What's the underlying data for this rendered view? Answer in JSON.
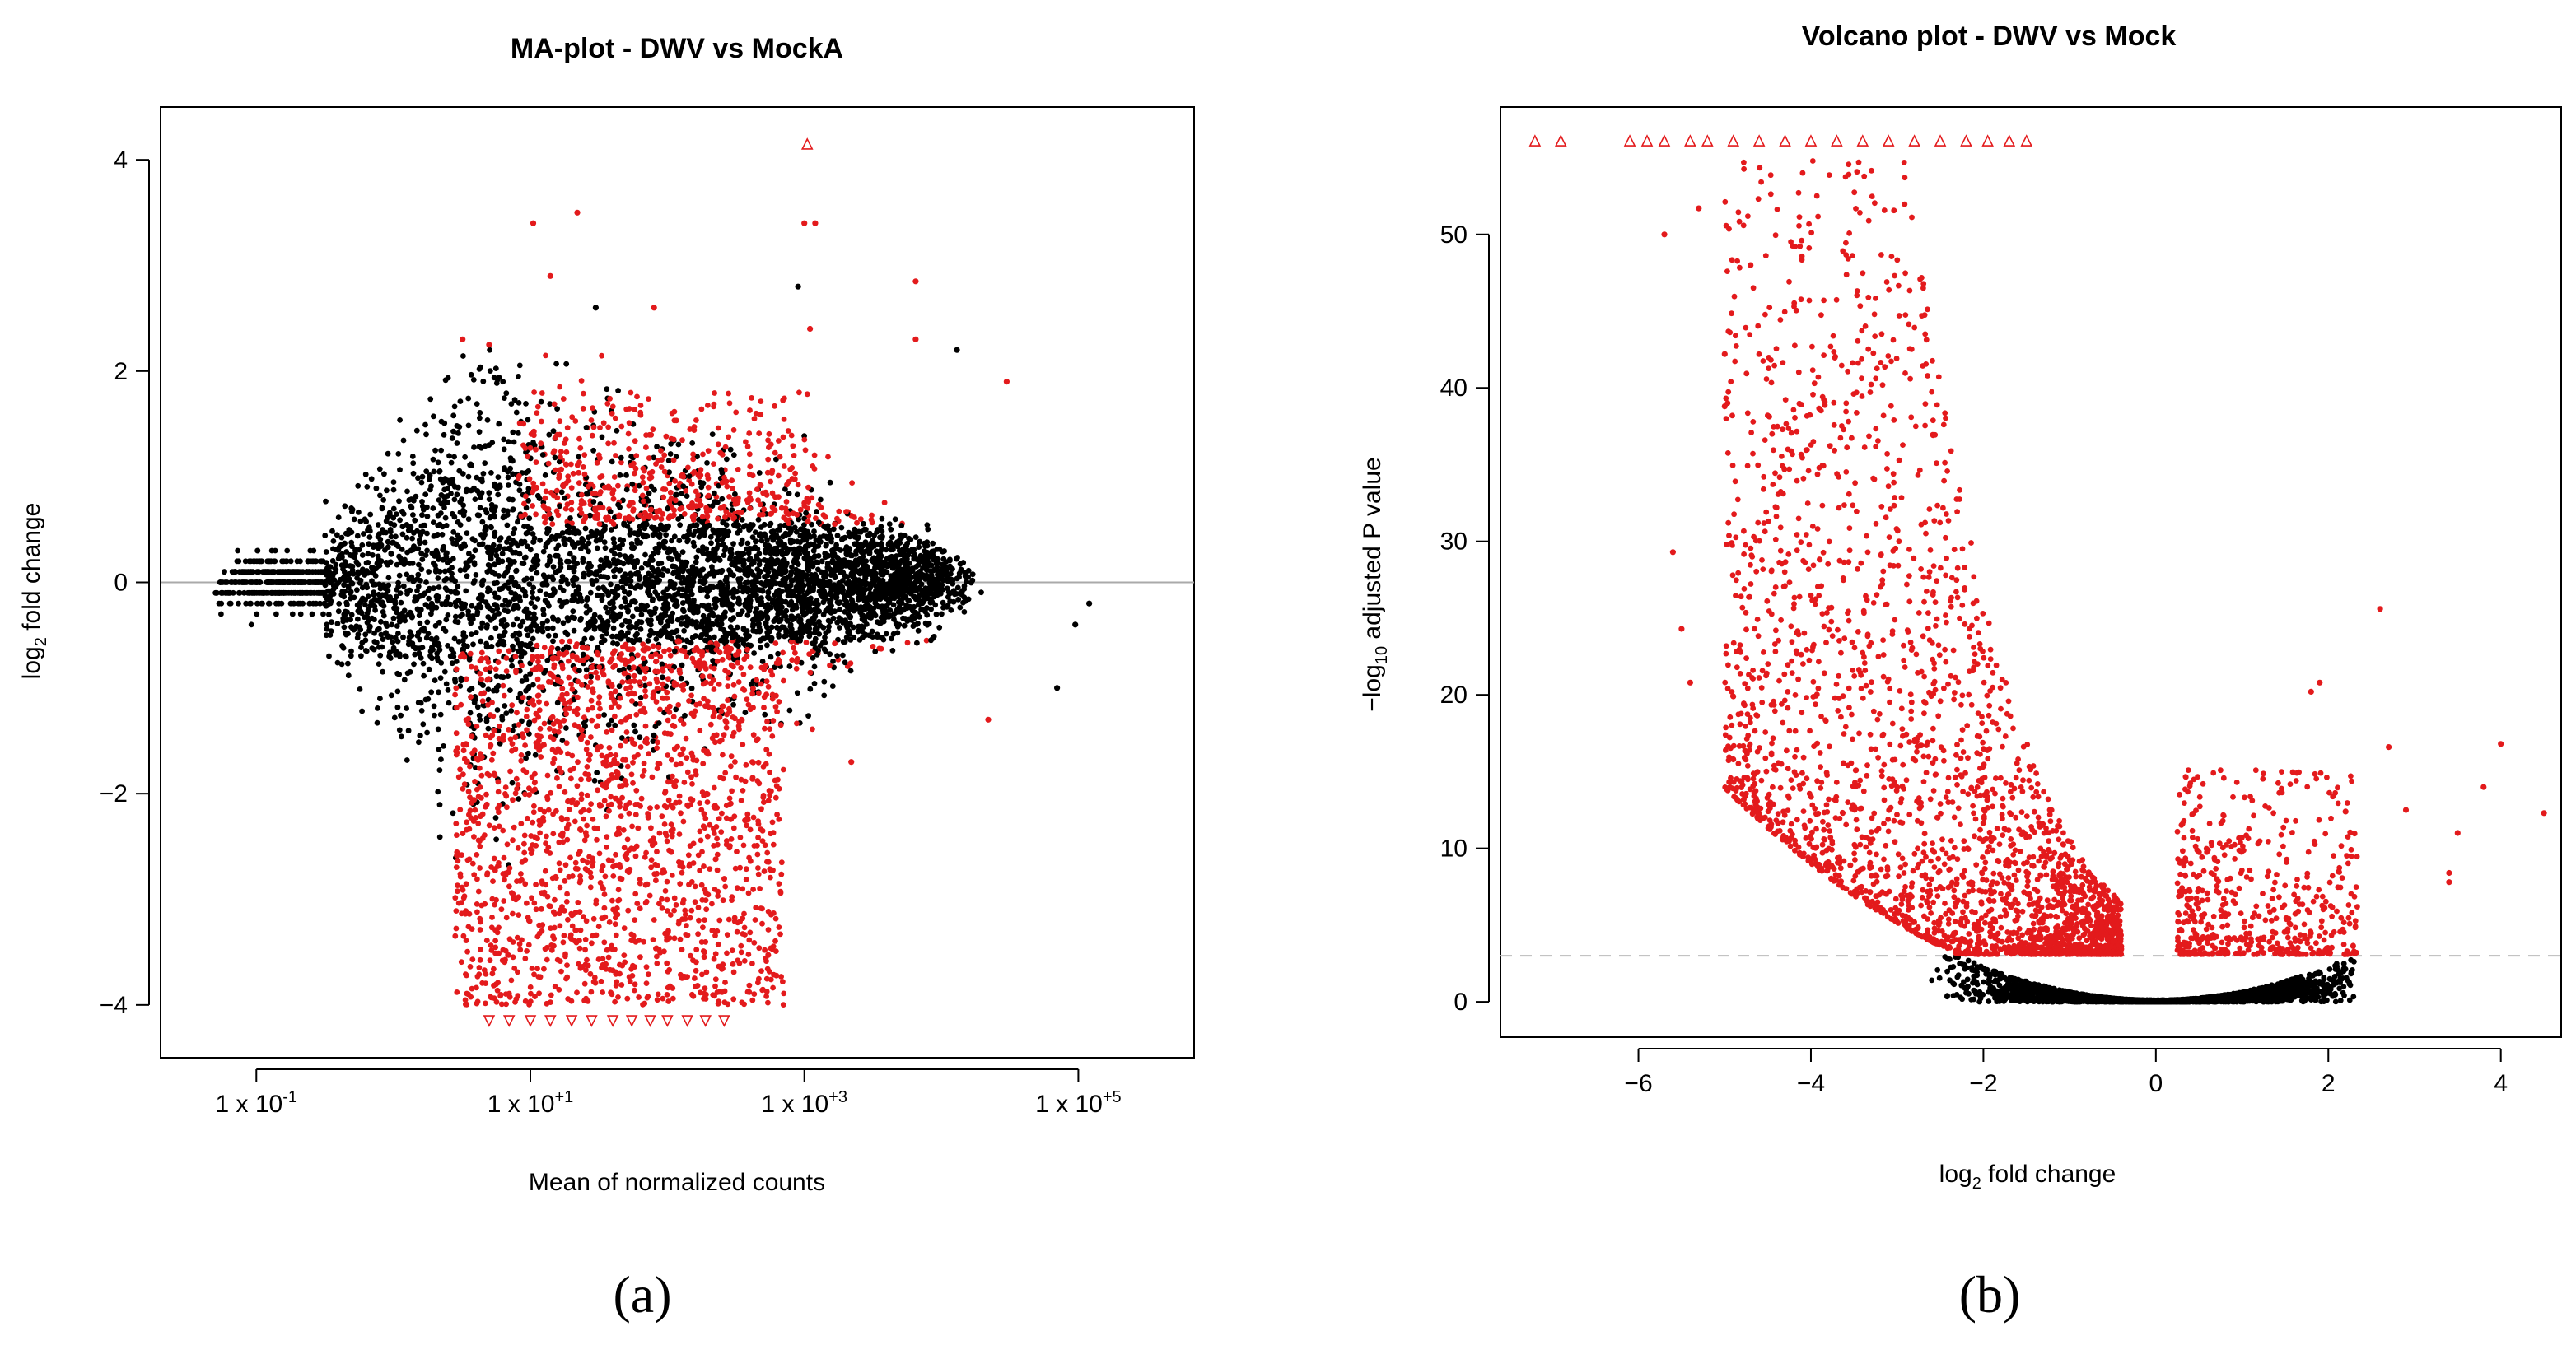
{
  "chart_data": [
    {
      "panel_label": "(a)",
      "type": "scatter",
      "title": "MA-plot - DWV vs MockA",
      "xlabel": "Mean of normalized counts",
      "ylabel_base": "log",
      "ylabel_sub": "2",
      "ylabel_rest": " fold change",
      "x_scale": "log10",
      "xlim": [
        0.02,
        700000
      ],
      "ylim": [
        -4.5,
        4.5
      ],
      "x_ticks": [
        {
          "value": 0.1,
          "label_base": "1 x 10",
          "label_exp": "-1"
        },
        {
          "value": 10,
          "label_base": "1 x 10",
          "label_exp": "+1"
        },
        {
          "value": 1000,
          "label_base": "1 x 10",
          "label_exp": "+3"
        },
        {
          "value": 100000,
          "label_base": "1 x 10",
          "label_exp": "+5"
        }
      ],
      "y_ticks": [
        {
          "value": -4,
          "label": "−4"
        },
        {
          "value": -2,
          "label": "−2"
        },
        {
          "value": 0,
          "label": "0"
        },
        {
          "value": 2,
          "label": "2"
        },
        {
          "value": 4,
          "label": "4"
        }
      ],
      "reference_line": {
        "y": 0,
        "color": "#aaaaaa"
      },
      "colors": {
        "not_significant": "#000000",
        "significant": "#e31a1c"
      },
      "series_points": [
        {
          "group": "significant",
          "x": 3.2,
          "y": 2.3
        },
        {
          "group": "significant",
          "x": 5.0,
          "y": 2.25
        },
        {
          "group": "significant",
          "x": 10.5,
          "y": 3.4
        },
        {
          "group": "significant",
          "x": 22,
          "y": 3.5
        },
        {
          "group": "significant",
          "x": 14,
          "y": 2.9
        },
        {
          "group": "significant",
          "x": 80,
          "y": 2.6
        },
        {
          "group": "significant",
          "x": 1000,
          "y": 3.4
        },
        {
          "group": "significant",
          "x": 1200,
          "y": 3.4
        },
        {
          "group": "significant",
          "x": 1100,
          "y": 2.4
        },
        {
          "group": "significant",
          "x": 6500,
          "y": 2.85
        },
        {
          "group": "significant",
          "x": 6500,
          "y": 2.3
        },
        {
          "group": "significant",
          "x": 30000,
          "y": 1.9
        },
        {
          "group": "significant",
          "x": 22000,
          "y": -1.3
        },
        {
          "group": "significant",
          "x": 2200,
          "y": -1.7
        },
        {
          "group": "not_significant",
          "x": 900,
          "y": 2.8
        },
        {
          "group": "not_significant",
          "x": 13000,
          "y": 2.2
        },
        {
          "group": "not_significant",
          "x": 70000,
          "y": -1.0
        },
        {
          "group": "not_significant",
          "x": 30,
          "y": 2.6
        },
        {
          "group": "not_significant",
          "x": 95000,
          "y": -0.4
        },
        {
          "group": "not_significant",
          "x": 120000,
          "y": -0.2
        }
      ],
      "capped_points": [
        {
          "group": "significant",
          "x": 1050,
          "y": 4.15,
          "marker": "triangle-up"
        },
        {
          "group": "significant",
          "x": 5,
          "y": -4.15,
          "marker": "triangle-down"
        },
        {
          "group": "significant",
          "x": 7,
          "y": -4.15,
          "marker": "triangle-down"
        },
        {
          "group": "significant",
          "x": 10,
          "y": -4.15,
          "marker": "triangle-down"
        },
        {
          "group": "significant",
          "x": 14,
          "y": -4.15,
          "marker": "triangle-down"
        },
        {
          "group": "significant",
          "x": 20,
          "y": -4.15,
          "marker": "triangle-down"
        },
        {
          "group": "significant",
          "x": 28,
          "y": -4.15,
          "marker": "triangle-down"
        },
        {
          "group": "significant",
          "x": 40,
          "y": -4.15,
          "marker": "triangle-down"
        },
        {
          "group": "significant",
          "x": 55,
          "y": -4.15,
          "marker": "triangle-down"
        },
        {
          "group": "significant",
          "x": 75,
          "y": -4.15,
          "marker": "triangle-down"
        },
        {
          "group": "significant",
          "x": 100,
          "y": -4.15,
          "marker": "triangle-down"
        },
        {
          "group": "significant",
          "x": 140,
          "y": -4.15,
          "marker": "triangle-down"
        },
        {
          "group": "significant",
          "x": 190,
          "y": -4.15,
          "marker": "triangle-down"
        },
        {
          "group": "significant",
          "x": 260,
          "y": -4.15,
          "marker": "triangle-down"
        }
      ]
    },
    {
      "panel_label": "(b)",
      "type": "scatter",
      "title": "Volcano plot - DWV vs Mock",
      "xlabel_base": "log",
      "xlabel_sub": "2",
      "xlabel_rest": " fold change",
      "ylabel_prefix": "−log",
      "ylabel_sub": "10",
      "ylabel_rest": " adjusted P value",
      "xlim": [
        -7.6,
        4.7
      ],
      "ylim": [
        -2.3,
        58.3
      ],
      "x_ticks": [
        {
          "value": -6,
          "label": "−6"
        },
        {
          "value": -4,
          "label": "−4"
        },
        {
          "value": -2,
          "label": "−2"
        },
        {
          "value": 0,
          "label": "0"
        },
        {
          "value": 2,
          "label": "2"
        },
        {
          "value": 4,
          "label": "4"
        }
      ],
      "y_ticks": [
        {
          "value": 0,
          "label": "0"
        },
        {
          "value": 10,
          "label": "10"
        },
        {
          "value": 20,
          "label": "20"
        },
        {
          "value": 30,
          "label": "30"
        },
        {
          "value": 40,
          "label": "40"
        },
        {
          "value": 50,
          "label": "50"
        }
      ],
      "threshold_line": {
        "y": 3.0,
        "color": "#bbbbbb",
        "style": "dashed"
      },
      "colors": {
        "not_significant": "#000000",
        "significant": "#e31a1c"
      },
      "series_points": [
        {
          "group": "significant",
          "x": 4.5,
          "y": 12.3
        },
        {
          "group": "significant",
          "x": 4.0,
          "y": 16.8
        },
        {
          "group": "significant",
          "x": 3.5,
          "y": 11.0
        },
        {
          "group": "significant",
          "x": 3.4,
          "y": 7.8
        },
        {
          "group": "significant",
          "x": 3.4,
          "y": 8.4
        },
        {
          "group": "significant",
          "x": 2.6,
          "y": 25.6
        },
        {
          "group": "significant",
          "x": 2.7,
          "y": 16.6
        },
        {
          "group": "significant",
          "x": 2.9,
          "y": 12.5
        },
        {
          "group": "significant",
          "x": 1.9,
          "y": 20.8
        },
        {
          "group": "significant",
          "x": 1.8,
          "y": 20.2
        },
        {
          "group": "significant",
          "x": 2.2,
          "y": 12.4
        },
        {
          "group": "significant",
          "x": 3.8,
          "y": 14.0
        },
        {
          "group": "significant",
          "x": -5.6,
          "y": 29.3
        },
        {
          "group": "significant",
          "x": -5.5,
          "y": 24.3
        },
        {
          "group": "significant",
          "x": -5.7,
          "y": 50.0
        },
        {
          "group": "significant",
          "x": -5.4,
          "y": 20.8
        },
        {
          "group": "significant",
          "x": -5.0,
          "y": 42.2
        },
        {
          "group": "significant",
          "x": -5.0,
          "y": 38.8
        },
        {
          "group": "significant",
          "x": -4.9,
          "y": 15.8
        },
        {
          "group": "significant",
          "x": -5.3,
          "y": 51.7
        },
        {
          "group": "significant",
          "x": -4.7,
          "y": 48.0
        }
      ],
      "capped_points": [
        {
          "group": "significant",
          "x": -7.2,
          "y": 56.1,
          "marker": "triangle-up"
        },
        {
          "group": "significant",
          "x": -6.9,
          "y": 56.1,
          "marker": "triangle-up"
        },
        {
          "group": "significant",
          "x": -6.1,
          "y": 56.1,
          "marker": "triangle-up"
        },
        {
          "group": "significant",
          "x": -5.9,
          "y": 56.1,
          "marker": "triangle-up"
        },
        {
          "group": "significant",
          "x": -5.7,
          "y": 56.1,
          "marker": "triangle-up"
        },
        {
          "group": "significant",
          "x": -5.4,
          "y": 56.1,
          "marker": "triangle-up"
        },
        {
          "group": "significant",
          "x": -5.2,
          "y": 56.1,
          "marker": "triangle-up"
        },
        {
          "group": "significant",
          "x": -4.9,
          "y": 56.1,
          "marker": "triangle-up"
        },
        {
          "group": "significant",
          "x": -4.6,
          "y": 56.1,
          "marker": "triangle-up"
        },
        {
          "group": "significant",
          "x": -4.3,
          "y": 56.1,
          "marker": "triangle-up"
        },
        {
          "group": "significant",
          "x": -4.0,
          "y": 56.1,
          "marker": "triangle-up"
        },
        {
          "group": "significant",
          "x": -3.7,
          "y": 56.1,
          "marker": "triangle-up"
        },
        {
          "group": "significant",
          "x": -3.4,
          "y": 56.1,
          "marker": "triangle-up"
        },
        {
          "group": "significant",
          "x": -3.1,
          "y": 56.1,
          "marker": "triangle-up"
        },
        {
          "group": "significant",
          "x": -2.8,
          "y": 56.1,
          "marker": "triangle-up"
        },
        {
          "group": "significant",
          "x": -2.5,
          "y": 56.1,
          "marker": "triangle-up"
        },
        {
          "group": "significant",
          "x": -2.2,
          "y": 56.1,
          "marker": "triangle-up"
        },
        {
          "group": "significant",
          "x": -1.95,
          "y": 56.1,
          "marker": "triangle-up"
        },
        {
          "group": "significant",
          "x": -1.7,
          "y": 56.1,
          "marker": "triangle-up"
        },
        {
          "group": "significant",
          "x": -1.5,
          "y": 56.1,
          "marker": "triangle-up"
        }
      ]
    }
  ]
}
